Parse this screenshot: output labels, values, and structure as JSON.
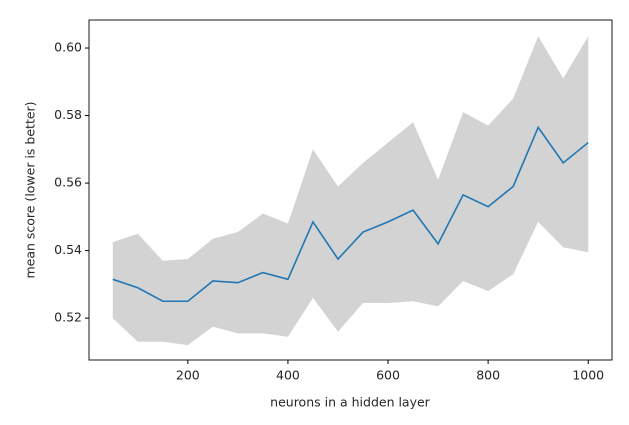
{
  "chart_data": {
    "type": "line",
    "x_label": "neurons in a hidden layer",
    "y_label": "mean score (lower is better)",
    "x": [
      50,
      100,
      150,
      200,
      250,
      300,
      350,
      400,
      450,
      500,
      550,
      600,
      650,
      700,
      750,
      800,
      850,
      900,
      950,
      1000
    ],
    "series": [
      {
        "color": "#1f77b4",
        "values": [
          0.5315,
          0.529,
          0.525,
          0.525,
          0.531,
          0.5305,
          0.5335,
          0.5315,
          0.5485,
          0.5375,
          0.5455,
          0.5485,
          0.552,
          0.542,
          0.5565,
          0.553,
          0.559,
          0.5765,
          0.566,
          0.572
        ]
      }
    ],
    "band": {
      "color": "#d3d3d3",
      "upper": [
        0.5425,
        0.545,
        0.537,
        0.5375,
        0.5435,
        0.5455,
        0.551,
        0.548,
        0.57,
        0.559,
        0.566,
        0.572,
        0.578,
        0.561,
        0.581,
        0.577,
        0.585,
        0.6035,
        0.591,
        0.6035
      ],
      "lower": [
        0.52,
        0.513,
        0.513,
        0.512,
        0.5175,
        0.5155,
        0.5155,
        0.5145,
        0.526,
        0.516,
        0.5245,
        0.5245,
        0.525,
        0.5235,
        0.531,
        0.528,
        0.533,
        0.5485,
        0.541,
        0.5395
      ]
    },
    "xlim": [
      2.5,
      1047.5
    ],
    "ylim": [
      0.5076,
      0.6083
    ],
    "xticks": [
      200,
      400,
      600,
      800,
      1000
    ],
    "yticks": [
      0.52,
      0.54,
      0.56,
      0.58,
      {
        "value": 0.6,
        "label": "0.60"
      }
    ]
  }
}
